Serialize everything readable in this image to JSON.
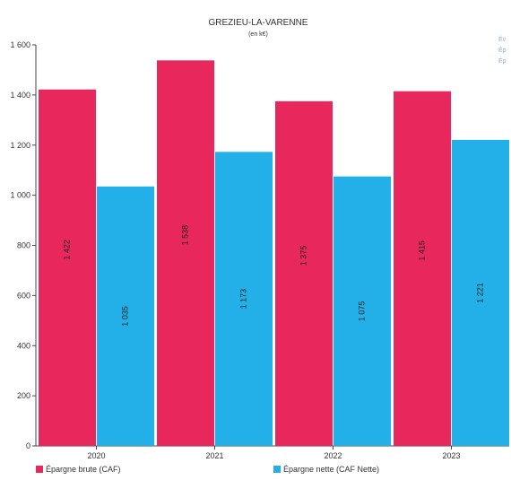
{
  "chart_data": {
    "type": "bar",
    "title": "GREZIEU-LA-VARENNE",
    "subtitle": "(en k€)",
    "categories": [
      "2020",
      "2021",
      "2022",
      "2023"
    ],
    "series": [
      {
        "name": "Épargne brute (CAF)",
        "color": "#e8285c",
        "values": [
          1422,
          1538,
          1375,
          1415
        ],
        "labels": [
          "1 422",
          "1 538",
          "1 375",
          "1 415"
        ]
      },
      {
        "name": "Épargne nette (CAF Nette)",
        "color": "#23b0e8",
        "values": [
          1035,
          1173,
          1075,
          1221
        ],
        "labels": [
          "1 035",
          "1 173",
          "1 075",
          "1 221"
        ]
      }
    ],
    "ylim": [
      0,
      1600
    ],
    "yticks": [
      0,
      200,
      400,
      600,
      800,
      1000,
      1200,
      1400,
      1600
    ],
    "ytick_labels": [
      "0",
      "200",
      "400",
      "600",
      "800",
      "1 000",
      "1 200",
      "1 400",
      "1 600"
    ],
    "grid": false,
    "legend_position": "bottom",
    "side_note": [
      "Év",
      "Ép",
      "Ép"
    ]
  }
}
